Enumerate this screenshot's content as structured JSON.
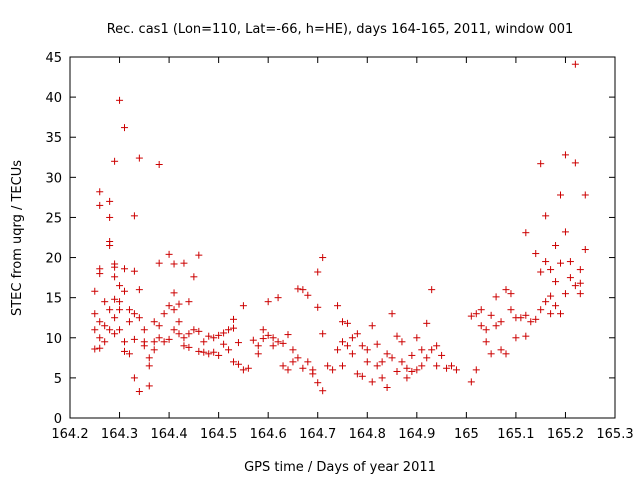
{
  "chart_data": {
    "type": "scatter",
    "title": "Rec. cas1 (Lon=110, Lat=-66, h=HE), days 164-165, 2011, window 001",
    "xlabel": "GPS time / Days of year 2011",
    "ylabel": "STEC from uqrg / TECUs",
    "xlim": [
      164.2,
      165.3
    ],
    "ylim": [
      0,
      45
    ],
    "x_ticks": [
      "164.2",
      "164.3",
      "164.4",
      "164.5",
      "164.6",
      "164.7",
      "164.8",
      "164.9",
      "165",
      "165.1",
      "165.2",
      "165.3"
    ],
    "y_ticks": [
      "0",
      "5",
      "10",
      "15",
      "20",
      "25",
      "30",
      "35",
      "40",
      "45"
    ],
    "grid": false,
    "marker": "plus",
    "marker_color": "#cc0000",
    "series": [
      {
        "points": [
          [
            164.25,
            15.8
          ],
          [
            164.25,
            13
          ],
          [
            164.25,
            11
          ],
          [
            164.25,
            8.6
          ],
          [
            164.26,
            8.7
          ],
          [
            164.26,
            10
          ],
          [
            164.26,
            12
          ],
          [
            164.26,
            18
          ],
          [
            164.26,
            18.6
          ],
          [
            164.26,
            26.5
          ],
          [
            164.26,
            28.2
          ],
          [
            164.27,
            14.5
          ],
          [
            164.27,
            11.5
          ],
          [
            164.27,
            9.5
          ],
          [
            164.28,
            27
          ],
          [
            164.28,
            25
          ],
          [
            164.28,
            21.5
          ],
          [
            164.28,
            22
          ],
          [
            164.28,
            13.5
          ],
          [
            164.28,
            11
          ],
          [
            164.29,
            14.8
          ],
          [
            164.29,
            12.5
          ],
          [
            164.29,
            10.5
          ],
          [
            164.29,
            17.6
          ],
          [
            164.29,
            18.8
          ],
          [
            164.29,
            19.2
          ],
          [
            164.29,
            32
          ],
          [
            164.3,
            39.6
          ],
          [
            164.3,
            16.5
          ],
          [
            164.3,
            14.5
          ],
          [
            164.3,
            13.5
          ],
          [
            164.3,
            11
          ],
          [
            164.31,
            9.5
          ],
          [
            164.31,
            8.3
          ],
          [
            164.31,
            18.6
          ],
          [
            164.31,
            15.8
          ],
          [
            164.31,
            36.2
          ],
          [
            164.32,
            13.5
          ],
          [
            164.32,
            12
          ],
          [
            164.32,
            8
          ],
          [
            164.33,
            18.3
          ],
          [
            164.33,
            25.2
          ],
          [
            164.33,
            13
          ],
          [
            164.33,
            9.8
          ],
          [
            164.33,
            5
          ],
          [
            164.34,
            32.4
          ],
          [
            164.34,
            16
          ],
          [
            164.34,
            12.5
          ],
          [
            164.34,
            3.3
          ],
          [
            164.35,
            11
          ],
          [
            164.35,
            9.5
          ],
          [
            164.35,
            9
          ],
          [
            164.36,
            4
          ],
          [
            164.36,
            6.5
          ],
          [
            164.36,
            7.5
          ],
          [
            164.37,
            9.5
          ],
          [
            164.37,
            8.5
          ],
          [
            164.37,
            12
          ],
          [
            164.38,
            31.6
          ],
          [
            164.38,
            19.3
          ],
          [
            164.38,
            11.5
          ],
          [
            164.38,
            10
          ],
          [
            164.39,
            13
          ],
          [
            164.39,
            9.5
          ],
          [
            164.4,
            20.4
          ],
          [
            164.4,
            14
          ],
          [
            164.4,
            9.8
          ],
          [
            164.41,
            19.2
          ],
          [
            164.41,
            13.5
          ],
          [
            164.41,
            11
          ],
          [
            164.41,
            15.6
          ],
          [
            164.42,
            12
          ],
          [
            164.42,
            10.5
          ],
          [
            164.42,
            14.2
          ],
          [
            164.43,
            19.3
          ],
          [
            164.43,
            10
          ],
          [
            164.43,
            9
          ],
          [
            164.44,
            10.5
          ],
          [
            164.44,
            14.5
          ],
          [
            164.44,
            8.8
          ],
          [
            164.45,
            17.6
          ],
          [
            164.45,
            11
          ],
          [
            164.46,
            20.3
          ],
          [
            164.46,
            10.8
          ],
          [
            164.46,
            8.3
          ],
          [
            164.47,
            8.2
          ],
          [
            164.47,
            9.5
          ],
          [
            164.48,
            10.2
          ],
          [
            164.48,
            8
          ],
          [
            164.49,
            8.2
          ],
          [
            164.49,
            10
          ],
          [
            164.5,
            7.8
          ],
          [
            164.5,
            10.3
          ],
          [
            164.51,
            10.6
          ],
          [
            164.51,
            9.2
          ],
          [
            164.52,
            11
          ],
          [
            164.52,
            8.5
          ],
          [
            164.53,
            11.2
          ],
          [
            164.53,
            12.3
          ],
          [
            164.53,
            7
          ],
          [
            164.54,
            9.4
          ],
          [
            164.54,
            6.7
          ],
          [
            164.55,
            14
          ],
          [
            164.55,
            6
          ],
          [
            164.56,
            6.2
          ],
          [
            164.57,
            9.7
          ],
          [
            164.58,
            9
          ],
          [
            164.58,
            8
          ],
          [
            164.59,
            11
          ],
          [
            164.59,
            9.9
          ],
          [
            164.6,
            14.5
          ],
          [
            164.6,
            10.3
          ],
          [
            164.61,
            9
          ],
          [
            164.61,
            10
          ],
          [
            164.62,
            15
          ],
          [
            164.62,
            9.5
          ],
          [
            164.63,
            6.5
          ],
          [
            164.63,
            9.3
          ],
          [
            164.64,
            10.4
          ],
          [
            164.64,
            6
          ],
          [
            164.65,
            8.5
          ],
          [
            164.65,
            7
          ],
          [
            164.66,
            16.1
          ],
          [
            164.66,
            7.5
          ],
          [
            164.67,
            16
          ],
          [
            164.67,
            6.2
          ],
          [
            164.68,
            7
          ],
          [
            164.68,
            15.3
          ],
          [
            164.69,
            6
          ],
          [
            164.69,
            5.5
          ],
          [
            164.7,
            18.2
          ],
          [
            164.7,
            13.8
          ],
          [
            164.7,
            4.4
          ],
          [
            164.71,
            20
          ],
          [
            164.71,
            10.5
          ],
          [
            164.71,
            3.4
          ],
          [
            164.72,
            6.5
          ],
          [
            164.73,
            6
          ],
          [
            164.74,
            14
          ],
          [
            164.74,
            8.5
          ],
          [
            164.75,
            12
          ],
          [
            164.75,
            9.5
          ],
          [
            164.75,
            6.5
          ],
          [
            164.76,
            11.8
          ],
          [
            164.76,
            9
          ],
          [
            164.77,
            10
          ],
          [
            164.77,
            8
          ],
          [
            164.78,
            10.5
          ],
          [
            164.78,
            5.5
          ],
          [
            164.79,
            9
          ],
          [
            164.79,
            5.2
          ],
          [
            164.8,
            8.5
          ],
          [
            164.8,
            7
          ],
          [
            164.81,
            11.5
          ],
          [
            164.81,
            4.5
          ],
          [
            164.82,
            9.2
          ],
          [
            164.82,
            6.5
          ],
          [
            164.83,
            7
          ],
          [
            164.83,
            5
          ],
          [
            164.84,
            8
          ],
          [
            164.84,
            3.8
          ],
          [
            164.85,
            13
          ],
          [
            164.85,
            7.5
          ],
          [
            164.86,
            10.2
          ],
          [
            164.86,
            5.8
          ],
          [
            164.87,
            9.5
          ],
          [
            164.87,
            7
          ],
          [
            164.88,
            6.2
          ],
          [
            164.88,
            5
          ],
          [
            164.89,
            7.8
          ],
          [
            164.89,
            5.8
          ],
          [
            164.9,
            10
          ],
          [
            164.9,
            6
          ],
          [
            164.91,
            8.5
          ],
          [
            164.91,
            6.5
          ],
          [
            164.92,
            11.8
          ],
          [
            164.92,
            7.5
          ],
          [
            164.93,
            16
          ],
          [
            164.93,
            8.5
          ],
          [
            164.94,
            9
          ],
          [
            164.94,
            6.5
          ],
          [
            164.95,
            7.8
          ],
          [
            164.96,
            6.2
          ],
          [
            164.97,
            6.5
          ],
          [
            164.98,
            6
          ],
          [
            165.01,
            4.5
          ],
          [
            165.01,
            12.7
          ],
          [
            165.02,
            13
          ],
          [
            165.02,
            6
          ],
          [
            165.03,
            11.5
          ],
          [
            165.03,
            13.5
          ],
          [
            165.04,
            9.5
          ],
          [
            165.04,
            11
          ],
          [
            165.05,
            12.8
          ],
          [
            165.05,
            8
          ],
          [
            165.06,
            11.5
          ],
          [
            165.06,
            15.1
          ],
          [
            165.07,
            12
          ],
          [
            165.07,
            8.5
          ],
          [
            165.08,
            16
          ],
          [
            165.08,
            8
          ],
          [
            165.09,
            15.5
          ],
          [
            165.09,
            13.5
          ],
          [
            165.1,
            10
          ],
          [
            165.1,
            12.5
          ],
          [
            165.11,
            12.5
          ],
          [
            165.12,
            10.2
          ],
          [
            165.12,
            12.8
          ],
          [
            165.12,
            23.1
          ],
          [
            165.13,
            12
          ],
          [
            165.14,
            20.5
          ],
          [
            165.14,
            12.3
          ],
          [
            165.15,
            13.5
          ],
          [
            165.15,
            18.2
          ],
          [
            165.15,
            31.7
          ],
          [
            165.16,
            14.5
          ],
          [
            165.16,
            19.5
          ],
          [
            165.16,
            25.2
          ],
          [
            165.17,
            15.2
          ],
          [
            165.17,
            18.5
          ],
          [
            165.17,
            13
          ],
          [
            165.18,
            21.5
          ],
          [
            165.18,
            17
          ],
          [
            165.18,
            14
          ],
          [
            165.19,
            27.8
          ],
          [
            165.19,
            19.3
          ],
          [
            165.19,
            13
          ],
          [
            165.2,
            23.2
          ],
          [
            165.2,
            32.8
          ],
          [
            165.2,
            15.5
          ],
          [
            165.21,
            17.5
          ],
          [
            165.21,
            19.5
          ],
          [
            165.22,
            31.8
          ],
          [
            165.22,
            44.1
          ],
          [
            165.22,
            16.5
          ],
          [
            165.23,
            18.5
          ],
          [
            165.23,
            15.5
          ],
          [
            165.23,
            16.8
          ],
          [
            165.24,
            21
          ],
          [
            165.24,
            27.8
          ]
        ]
      }
    ]
  }
}
